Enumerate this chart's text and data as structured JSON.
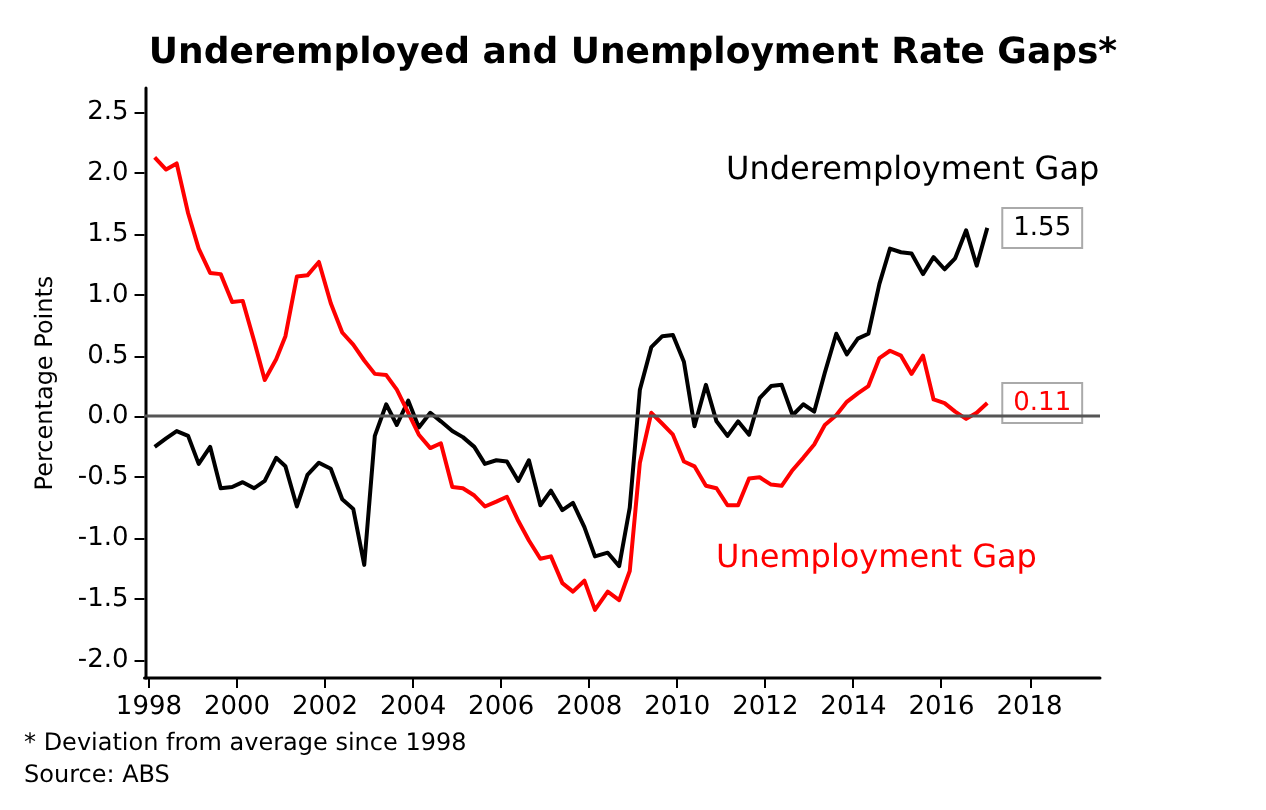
{
  "chart_data": {
    "type": "line",
    "title": "Underemployed and Unemployment Rate Gaps*",
    "ylabel": "Percentage Points",
    "annotations": [
      "* Deviation from average since 1998",
      "Source: ABS"
    ],
    "xlim": [
      1997.9,
      2019.6
    ],
    "xticks": [
      1998,
      2000,
      2002,
      2004,
      2006,
      2008,
      2010,
      2012,
      2014,
      2016,
      2018
    ],
    "ylim": [
      -2.15,
      2.7
    ],
    "yticks": [
      {
        "value": -2,
        "label": "-2.0"
      },
      -1.5,
      {
        "value": -1,
        "label": "-1.0"
      },
      -0.5,
      {
        "value": 0,
        "label": "0.0"
      },
      0.5,
      {
        "value": 1,
        "label": "1.0"
      },
      1.5,
      {
        "value": 2,
        "label": "2.0"
      },
      2.5
    ],
    "grid": false,
    "legend": false,
    "ref_lines": [
      {
        "axis": "y",
        "value": 0,
        "color": "#555555"
      }
    ],
    "series": [
      {
        "name": "Underemployment Gap",
        "color": "#000000",
        "x": [
          1998.13,
          1998.39,
          1998.63,
          1998.89,
          1999.13,
          1999.39,
          1999.63,
          1999.89,
          2000.13,
          2000.39,
          2000.63,
          2000.89,
          2001.1,
          2001.36,
          2001.6,
          2001.86,
          2002.13,
          2002.39,
          2002.64,
          2002.89,
          2003.13,
          2003.39,
          2003.63,
          2003.89,
          2004.13,
          2004.39,
          2004.63,
          2004.89,
          2005.13,
          2005.39,
          2005.63,
          2005.89,
          2006.13,
          2006.39,
          2006.63,
          2006.89,
          2007.13,
          2007.39,
          2007.63,
          2007.89,
          2008.13,
          2008.42,
          2008.68,
          2008.92,
          2009.15,
          2009.41,
          2009.66,
          2009.9,
          2010.15,
          2010.39,
          2010.65,
          2010.89,
          2011.14,
          2011.38,
          2011.63,
          2011.87,
          2012.13,
          2012.37,
          2012.62,
          2012.86,
          2013.11,
          2013.35,
          2013.61,
          2013.85,
          2014.1,
          2014.34,
          2014.59,
          2014.83,
          2015.08,
          2015.32,
          2015.58,
          2015.82,
          2016.07,
          2016.31,
          2016.56,
          2016.8,
          2017.04
        ],
        "values": [
          -0.25,
          -0.18,
          -0.12,
          -0.16,
          -0.39,
          -0.25,
          -0.59,
          -0.58,
          -0.54,
          -0.59,
          -0.53,
          -0.34,
          -0.41,
          -0.74,
          -0.48,
          -0.38,
          -0.43,
          -0.68,
          -0.76,
          -1.22,
          -0.16,
          0.1,
          -0.07,
          0.13,
          -0.09,
          0.03,
          -0.04,
          -0.12,
          -0.17,
          -0.25,
          -0.39,
          -0.36,
          -0.37,
          -0.53,
          -0.36,
          -0.73,
          -0.61,
          -0.77,
          -0.71,
          -0.91,
          -1.15,
          -1.12,
          -1.23,
          -0.75,
          0.22,
          0.57,
          0.66,
          0.67,
          0.45,
          -0.08,
          0.26,
          -0.04,
          -0.16,
          -0.04,
          -0.15,
          0.15,
          0.25,
          0.26,
          0.01,
          0.1,
          0.04,
          0.36,
          0.68,
          0.51,
          0.64,
          0.68,
          1.09,
          1.38,
          1.35,
          1.34,
          1.17,
          1.31,
          1.21,
          1.3,
          1.53,
          1.24,
          1.55
        ],
        "value_labels": [
          null,
          null,
          null,
          null,
          null,
          null,
          null,
          null,
          null,
          null,
          null,
          null,
          null,
          null,
          null,
          null,
          null,
          null,
          null,
          null,
          null,
          null,
          null,
          null,
          null,
          null,
          null,
          null,
          null,
          null,
          null,
          null,
          null,
          null,
          null,
          null,
          null,
          null,
          null,
          null,
          null,
          null,
          null,
          null,
          null,
          null,
          null,
          null,
          null,
          null,
          null,
          null,
          null,
          null,
          null,
          null,
          null,
          null,
          null,
          null,
          null,
          null,
          null,
          null,
          null,
          null,
          null,
          null,
          null,
          null,
          null,
          null,
          null,
          null,
          null,
          null,
          "1.55"
        ]
      },
      {
        "name": "Unemployment Gap",
        "color": "#ff0000",
        "x": [
          1998.13,
          1998.39,
          1998.63,
          1998.89,
          1999.13,
          1999.39,
          1999.63,
          1999.89,
          2000.13,
          2000.39,
          2000.63,
          2000.89,
          2001.1,
          2001.36,
          2001.6,
          2001.86,
          2002.13,
          2002.39,
          2002.64,
          2002.89,
          2003.13,
          2003.39,
          2003.63,
          2003.89,
          2004.13,
          2004.39,
          2004.63,
          2004.89,
          2005.13,
          2005.39,
          2005.63,
          2005.89,
          2006.13,
          2006.39,
          2006.63,
          2006.89,
          2007.13,
          2007.39,
          2007.63,
          2007.89,
          2008.13,
          2008.42,
          2008.68,
          2008.92,
          2009.15,
          2009.41,
          2009.66,
          2009.9,
          2010.15,
          2010.39,
          2010.65,
          2010.89,
          2011.14,
          2011.38,
          2011.63,
          2011.87,
          2012.13,
          2012.37,
          2012.62,
          2012.86,
          2013.11,
          2013.35,
          2013.61,
          2013.85,
          2014.1,
          2014.34,
          2014.59,
          2014.83,
          2015.08,
          2015.32,
          2015.58,
          2015.82,
          2016.07,
          2016.31,
          2016.56,
          2016.8,
          2017.04
        ],
        "values": [
          2.13,
          2.03,
          2.08,
          1.67,
          1.38,
          1.18,
          1.17,
          0.94,
          0.95,
          0.62,
          0.3,
          0.47,
          0.66,
          1.15,
          1.16,
          1.27,
          0.93,
          0.69,
          0.59,
          0.46,
          0.35,
          0.34,
          0.22,
          0.03,
          -0.15,
          -0.26,
          -0.22,
          -0.58,
          -0.59,
          -0.65,
          -0.74,
          -0.7,
          -0.66,
          -0.86,
          -1.02,
          -1.17,
          -1.15,
          -1.37,
          -1.44,
          -1.35,
          -1.59,
          -1.44,
          -1.51,
          -1.27,
          -0.38,
          0.03,
          -0.06,
          -0.15,
          -0.37,
          -0.41,
          -0.57,
          -0.59,
          -0.73,
          -0.73,
          -0.51,
          -0.5,
          -0.56,
          -0.57,
          -0.44,
          -0.34,
          -0.23,
          -0.07,
          0.01,
          0.12,
          0.19,
          0.25,
          0.48,
          0.54,
          0.5,
          0.35,
          0.5,
          0.14,
          0.11,
          0.04,
          -0.02,
          0.03,
          0.11
        ],
        "value_labels": [
          null,
          null,
          null,
          null,
          null,
          null,
          null,
          null,
          null,
          null,
          null,
          null,
          null,
          null,
          null,
          null,
          null,
          null,
          null,
          null,
          null,
          null,
          null,
          null,
          null,
          null,
          null,
          null,
          null,
          null,
          null,
          null,
          null,
          null,
          null,
          null,
          null,
          null,
          null,
          null,
          null,
          null,
          null,
          null,
          null,
          null,
          null,
          null,
          null,
          null,
          null,
          null,
          null,
          null,
          null,
          null,
          null,
          null,
          null,
          null,
          null,
          null,
          null,
          null,
          null,
          null,
          null,
          null,
          null,
          null,
          null,
          null,
          null,
          null,
          null,
          null,
          "0.11"
        ]
      }
    ]
  }
}
